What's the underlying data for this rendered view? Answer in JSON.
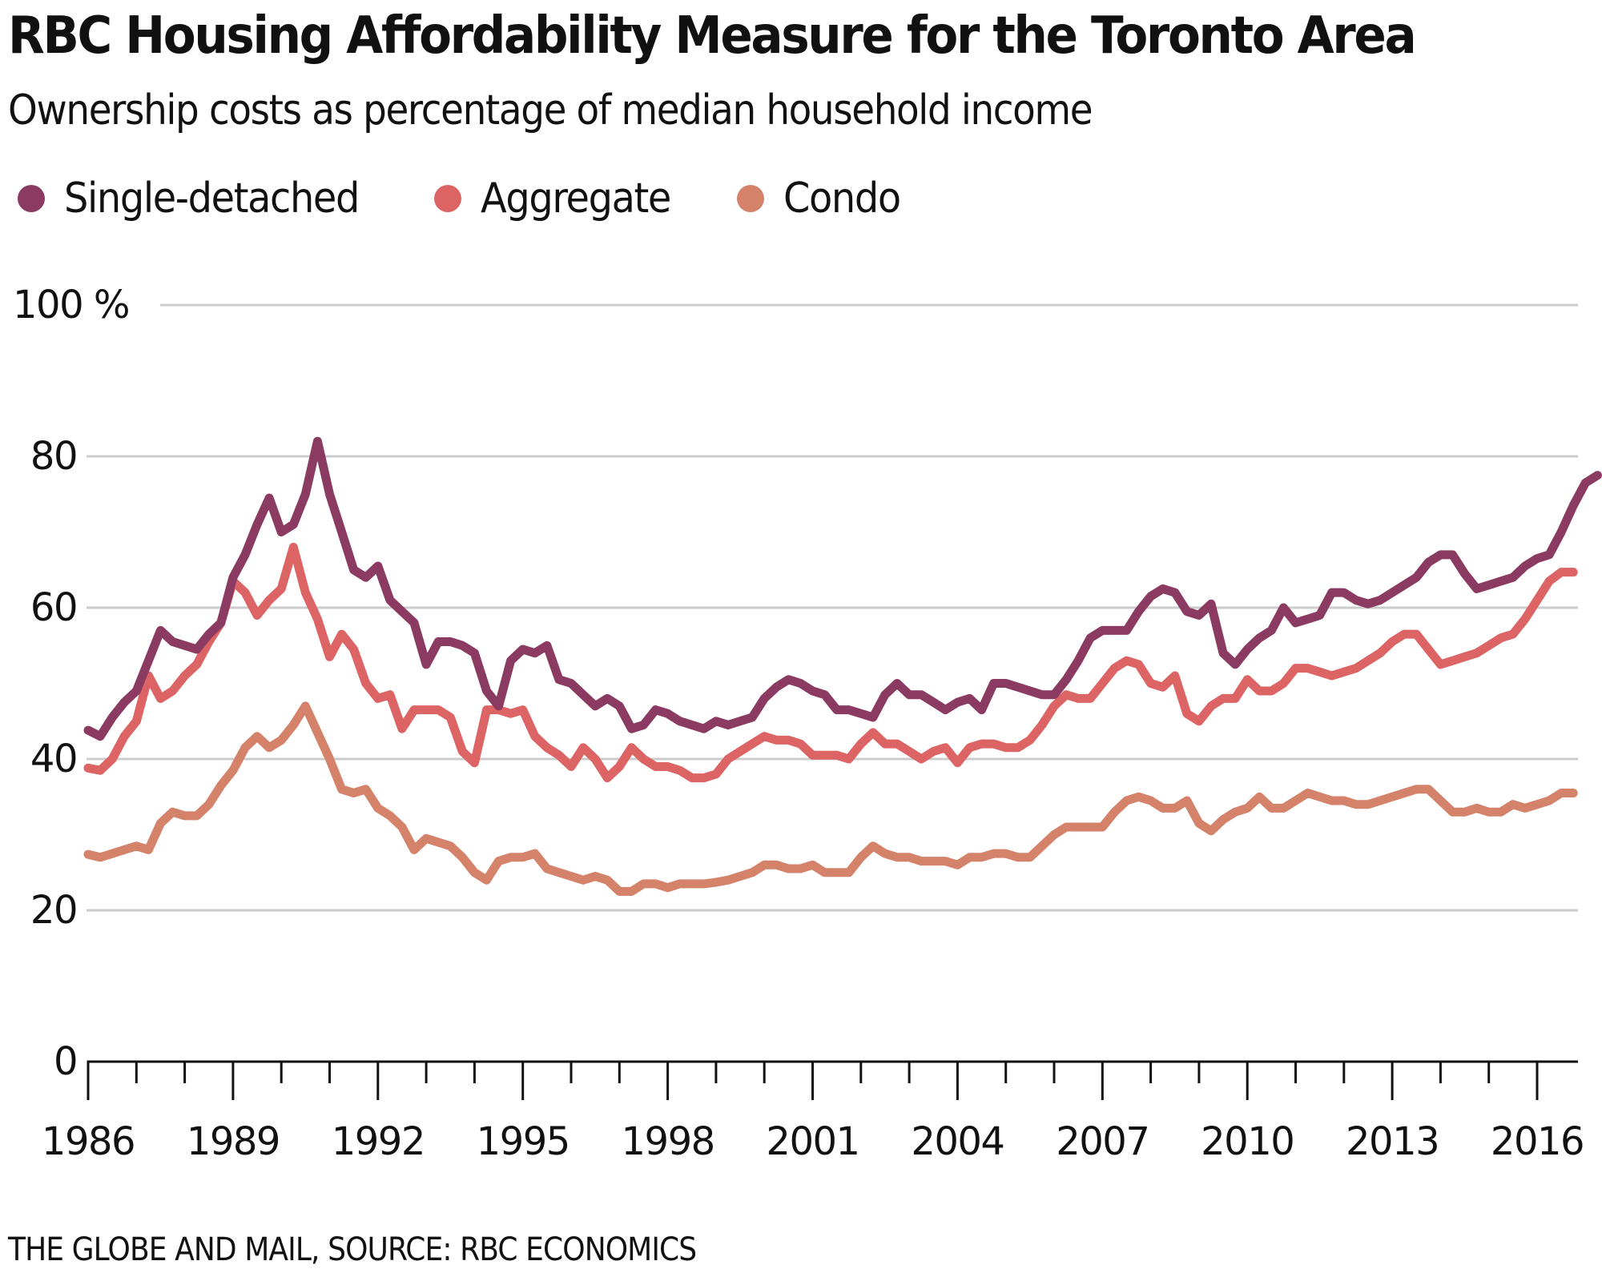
{
  "chart_data": {
    "type": "line",
    "title": "RBC Housing Affordability Measure for the Toronto Area",
    "subtitle": "Ownership costs as percentage of median household income",
    "source": "THE GLOBE AND MAIL, SOURCE: RBC ECONOMICS",
    "xlabel": "",
    "ylabel": "",
    "x_start": 1986.0,
    "x_step": 0.25,
    "xlim": [
      1986,
      2016.85
    ],
    "ylim": [
      0,
      100
    ],
    "yticks": [
      0,
      20,
      40,
      60,
      80,
      100
    ],
    "ytick_labels": [
      "0",
      "20",
      "40",
      "60",
      "80",
      "100 %"
    ],
    "xticks": [
      1986,
      1989,
      1992,
      1995,
      1998,
      2001,
      2004,
      2007,
      2010,
      2013,
      2016
    ],
    "xtick_labels": [
      "1986",
      "1989",
      "1992",
      "1995",
      "1998",
      "2001",
      "2004",
      "2007",
      "2010",
      "2013",
      "2016"
    ],
    "minor_xticks_every_years": 1,
    "grid": "horizontal",
    "legend_position": "top-left",
    "series": [
      {
        "name": "Single-detached",
        "color": "#8b3a62",
        "values": [
          43.8,
          43.0,
          45.5,
          47.5,
          49.0,
          53.0,
          57.0,
          55.5,
          55.0,
          54.5,
          56.5,
          58.0,
          64.0,
          67.0,
          71.0,
          74.5,
          70.0,
          71.0,
          75.0,
          82.0,
          75.0,
          70.0,
          65.0,
          64.0,
          65.5,
          61.0,
          59.5,
          58.0,
          52.5,
          55.5,
          55.5,
          55.0,
          54.0,
          49.0,
          47.0,
          53.0,
          54.5,
          54.0,
          55.0,
          50.5,
          50.0,
          48.5,
          47.0,
          48.0,
          47.0,
          44.0,
          44.5,
          46.5,
          46.0,
          45.0,
          44.5,
          44.0,
          45.0,
          44.5,
          45.0,
          45.5,
          48.0,
          49.5,
          50.5,
          50.0,
          49.0,
          48.5,
          46.5,
          46.5,
          46.0,
          45.5,
          48.5,
          50.0,
          48.5,
          48.5,
          47.5,
          46.5,
          47.5,
          48.0,
          46.5,
          50.0,
          50.0,
          49.5,
          49.0,
          48.5,
          48.5,
          50.5,
          53.0,
          56.0,
          57.0,
          57.0,
          57.0,
          59.5,
          61.5,
          62.5,
          62.0,
          59.5,
          59.0,
          60.5,
          54.0,
          52.5,
          54.5,
          56.0,
          57.0,
          60.0,
          58.0,
          58.5,
          59.0,
          62.0,
          62.0,
          61.0,
          60.5,
          61.0,
          62.0,
          63.0,
          64.0,
          66.0,
          67.0,
          67.0,
          64.5,
          62.5,
          63.0,
          63.5,
          64.0,
          65.5,
          66.5,
          67.0,
          70.0,
          73.5,
          76.5,
          77.5
        ]
      },
      {
        "name": "Aggregate",
        "color": "#dc6464",
        "values": [
          38.8,
          38.5,
          40.0,
          43.0,
          45.0,
          51.0,
          48.0,
          49.0,
          51.0,
          52.5,
          55.5,
          58.0,
          63.5,
          62.0,
          59.0,
          61.0,
          62.5,
          68.0,
          62.0,
          58.5,
          53.5,
          56.5,
          54.5,
          50.0,
          48.0,
          48.5,
          44.0,
          46.5,
          46.5,
          46.5,
          45.5,
          41.0,
          39.5,
          46.5,
          46.5,
          46.0,
          46.5,
          43.0,
          41.5,
          40.5,
          39.0,
          41.5,
          40.0,
          37.5,
          39.0,
          41.5,
          40.0,
          39.0,
          39.0,
          38.5,
          37.5,
          37.5,
          38.0,
          40.0,
          41.0,
          42.0,
          43.0,
          42.5,
          42.5,
          42.0,
          40.5,
          40.5,
          40.5,
          40.0,
          42.0,
          43.5,
          42.0,
          42.0,
          41.0,
          40.0,
          41.0,
          41.5,
          39.5,
          41.5,
          42.0,
          42.0,
          41.5,
          41.5,
          42.5,
          44.5,
          47.0,
          48.5,
          48.0,
          48.0,
          50.0,
          52.0,
          53.0,
          52.5,
          50.0,
          49.5,
          51.0,
          46.0,
          45.0,
          47.0,
          48.0,
          48.0,
          50.5,
          49.0,
          49.0,
          50.0,
          52.0,
          52.0,
          51.5,
          51.0,
          51.5,
          52.0,
          53.0,
          54.0,
          55.5,
          56.5,
          56.5,
          54.5,
          52.5,
          53.0,
          53.5,
          54.0,
          55.0,
          56.0,
          56.5,
          58.5,
          61.0,
          63.5,
          64.7,
          64.7
        ]
      },
      {
        "name": "Condo",
        "color": "#d4826a",
        "values": [
          27.4,
          27.0,
          27.5,
          28.0,
          28.5,
          28.0,
          31.5,
          33.0,
          32.5,
          32.5,
          34.0,
          36.5,
          38.5,
          41.5,
          43.0,
          41.5,
          42.5,
          44.5,
          47.0,
          43.5,
          40.0,
          36.0,
          35.5,
          36.0,
          33.5,
          32.5,
          31.0,
          28.0,
          29.5,
          29.0,
          28.5,
          27.0,
          25.0,
          24.0,
          26.5,
          27.0,
          27.0,
          27.5,
          25.5,
          25.0,
          24.5,
          24.0,
          24.5,
          24.0,
          22.5,
          22.5,
          23.5,
          23.5,
          23.0,
          23.5,
          23.5,
          23.5,
          23.7,
          24.0,
          24.5,
          25.0,
          26.0,
          26.0,
          25.5,
          25.5,
          26.0,
          25.0,
          25.0,
          25.0,
          27.0,
          28.5,
          27.5,
          27.0,
          27.0,
          26.5,
          26.5,
          26.5,
          26.0,
          27.0,
          27.0,
          27.5,
          27.5,
          27.0,
          27.0,
          28.5,
          30.0,
          31.0,
          31.0,
          31.0,
          31.0,
          33.0,
          34.5,
          35.0,
          34.5,
          33.5,
          33.5,
          34.5,
          31.5,
          30.5,
          32.0,
          33.0,
          33.5,
          35.0,
          33.5,
          33.5,
          34.5,
          35.5,
          35.0,
          34.5,
          34.5,
          34.0,
          34.0,
          34.5,
          35.0,
          35.5,
          36.0,
          36.0,
          34.5,
          33.0,
          33.0,
          33.5,
          33.0,
          33.0,
          34.0,
          33.5,
          34.0,
          34.5,
          35.5,
          35.5
        ]
      }
    ]
  }
}
